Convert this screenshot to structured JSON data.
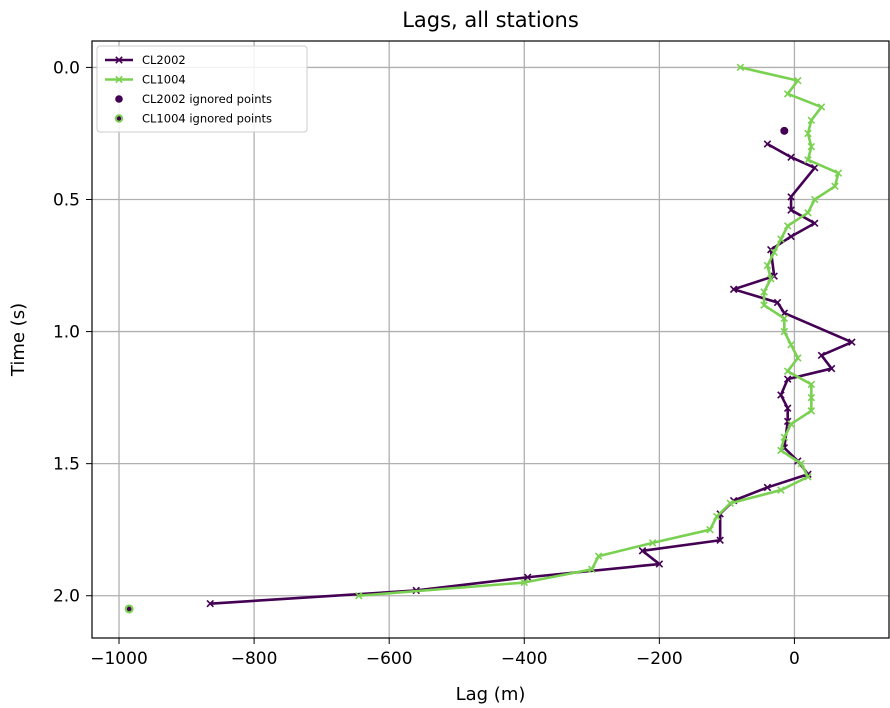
{
  "chart_data": {
    "type": "line",
    "title": "Lags, all stations",
    "xlabel": "Lag (m)",
    "ylabel": "Time (s)",
    "xlim": [
      -1040,
      140
    ],
    "ylim": [
      2.16,
      -0.1
    ],
    "y_inverted": true,
    "grid": true,
    "legend_position": "top-left",
    "xticks": [
      -1000,
      -800,
      -600,
      -400,
      -200,
      0
    ],
    "xtick_labels": [
      "−1000",
      "−800",
      "−600",
      "−400",
      "−200",
      "0"
    ],
    "yticks": [
      0.0,
      0.5,
      1.0,
      1.5,
      2.0
    ],
    "ytick_labels": [
      "0.0",
      "0.5",
      "1.0",
      "1.5",
      "2.0"
    ],
    "series": [
      {
        "name": "CL2002",
        "color": "#440154",
        "marker": "x",
        "points": [
          [
            -40,
            0.29
          ],
          [
            -5,
            0.34
          ],
          [
            30,
            0.38
          ],
          [
            -5,
            0.49
          ],
          [
            -5,
            0.54
          ],
          [
            30,
            0.59
          ],
          [
            -5,
            0.64
          ],
          [
            -35,
            0.69
          ],
          [
            -30,
            0.79
          ],
          [
            -90,
            0.84
          ],
          [
            -25,
            0.89
          ],
          [
            -15,
            0.93
          ],
          [
            85,
            1.04
          ],
          [
            40,
            1.09
          ],
          [
            55,
            1.14
          ],
          [
            -10,
            1.18
          ],
          [
            -20,
            1.24
          ],
          [
            -10,
            1.29
          ],
          [
            -10,
            1.34
          ],
          [
            -15,
            1.44
          ],
          [
            5,
            1.49
          ],
          [
            20,
            1.54
          ],
          [
            -40,
            1.59
          ],
          [
            -90,
            1.64
          ],
          [
            -110,
            1.69
          ],
          [
            -110,
            1.79
          ],
          [
            -225,
            1.83
          ],
          [
            -200,
            1.88
          ],
          [
            -395,
            1.93
          ],
          [
            -560,
            1.98
          ],
          [
            -865,
            2.03
          ]
        ]
      },
      {
        "name": "CL1004",
        "color": "#7ad151",
        "marker": "x",
        "points": [
          [
            -80,
            0.0
          ],
          [
            5,
            0.05
          ],
          [
            -10,
            0.1
          ],
          [
            40,
            0.15
          ],
          [
            25,
            0.2
          ],
          [
            20,
            0.25
          ],
          [
            25,
            0.3
          ],
          [
            20,
            0.35
          ],
          [
            65,
            0.4
          ],
          [
            60,
            0.45
          ],
          [
            30,
            0.5
          ],
          [
            20,
            0.55
          ],
          [
            -10,
            0.6
          ],
          [
            -20,
            0.65
          ],
          [
            -30,
            0.7
          ],
          [
            -40,
            0.75
          ],
          [
            -35,
            0.8
          ],
          [
            -45,
            0.85
          ],
          [
            -45,
            0.9
          ],
          [
            -15,
            0.95
          ],
          [
            -15,
            1.0
          ],
          [
            -5,
            1.05
          ],
          [
            5,
            1.1
          ],
          [
            -10,
            1.15
          ],
          [
            25,
            1.2
          ],
          [
            25,
            1.25
          ],
          [
            25,
            1.3
          ],
          [
            -5,
            1.35
          ],
          [
            -15,
            1.4
          ],
          [
            -20,
            1.45
          ],
          [
            10,
            1.5
          ],
          [
            20,
            1.55
          ],
          [
            -20,
            1.6
          ],
          [
            -95,
            1.65
          ],
          [
            -115,
            1.7
          ],
          [
            -125,
            1.75
          ],
          [
            -210,
            1.8
          ],
          [
            -290,
            1.85
          ],
          [
            -300,
            1.9
          ],
          [
            -400,
            1.95
          ],
          [
            -645,
            2.0
          ]
        ]
      }
    ],
    "ignored_series": [
      {
        "name": "CL2002 ignored points",
        "color": "#440154",
        "points": [
          [
            -15,
            0.24
          ]
        ]
      },
      {
        "name": "CL1004 ignored points",
        "color": "#440154",
        "edge_color": "#7ad151",
        "points": [
          [
            -985,
            2.05
          ]
        ]
      }
    ]
  }
}
